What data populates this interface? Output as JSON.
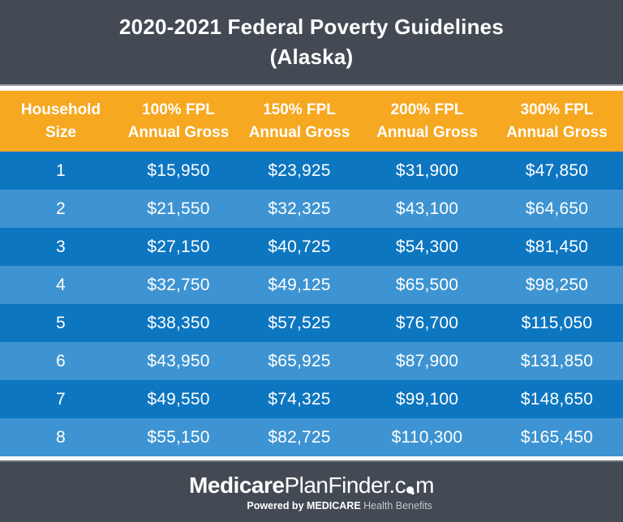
{
  "title": {
    "line1": "2020-2021 Federal Poverty Guidelines",
    "line2": "(Alaska)"
  },
  "table": {
    "columns": [
      {
        "line1": "Household",
        "line2": "Size"
      },
      {
        "line1": "100% FPL",
        "line2": "Annual Gross"
      },
      {
        "line1": "150% FPL",
        "line2": "Annual Gross"
      },
      {
        "line1": "200% FPL",
        "line2": "Annual Gross"
      },
      {
        "line1": "300% FPL",
        "line2": "Annual Gross"
      }
    ]
  },
  "chart_data": {
    "type": "table",
    "title": "2020-2021 Federal Poverty Guidelines (Alaska)",
    "columns": [
      "Household Size",
      "100% FPL Annual Gross",
      "150% FPL Annual Gross",
      "200% FPL Annual Gross",
      "300% FPL Annual Gross"
    ],
    "rows": [
      [
        "1",
        "$15,950",
        "$23,925",
        "$31,900",
        "$47,850"
      ],
      [
        "2",
        "$21,550",
        "$32,325",
        "$43,100",
        "$64,650"
      ],
      [
        "3",
        "$27,150",
        "$40,725",
        "$54,300",
        "$81,450"
      ],
      [
        "4",
        "$32,750",
        "$49,125",
        "$65,500",
        "$98,250"
      ],
      [
        "5",
        "$38,350",
        "$57,525",
        "$76,700",
        "$115,050"
      ],
      [
        "6",
        "$43,950",
        "$65,925",
        "$87,900",
        "$131,850"
      ],
      [
        "7",
        "$49,550",
        "$74,325",
        "$99,100",
        "$148,650"
      ],
      [
        "8",
        "$55,150",
        "$82,725",
        "$110,300",
        "$165,450"
      ]
    ]
  },
  "footer": {
    "logo": {
      "medicare": "Medicare",
      "planfinder": "PlanFinder",
      "dot_c": ".c",
      "m": "m",
      "magnifier_icon": "magnifying-glass-as-letter-o"
    },
    "tagline": {
      "bold": "Powered by MEDICARE",
      "light": "Health Benefits"
    }
  },
  "colors": {
    "background_dark": "#434a54",
    "header_orange": "#f6a821",
    "row_blue_dark": "#0d76c1",
    "row_blue_light": "#3e94d2",
    "text_white": "#ffffff",
    "tagline_light_gray": "#c3c8cd"
  }
}
